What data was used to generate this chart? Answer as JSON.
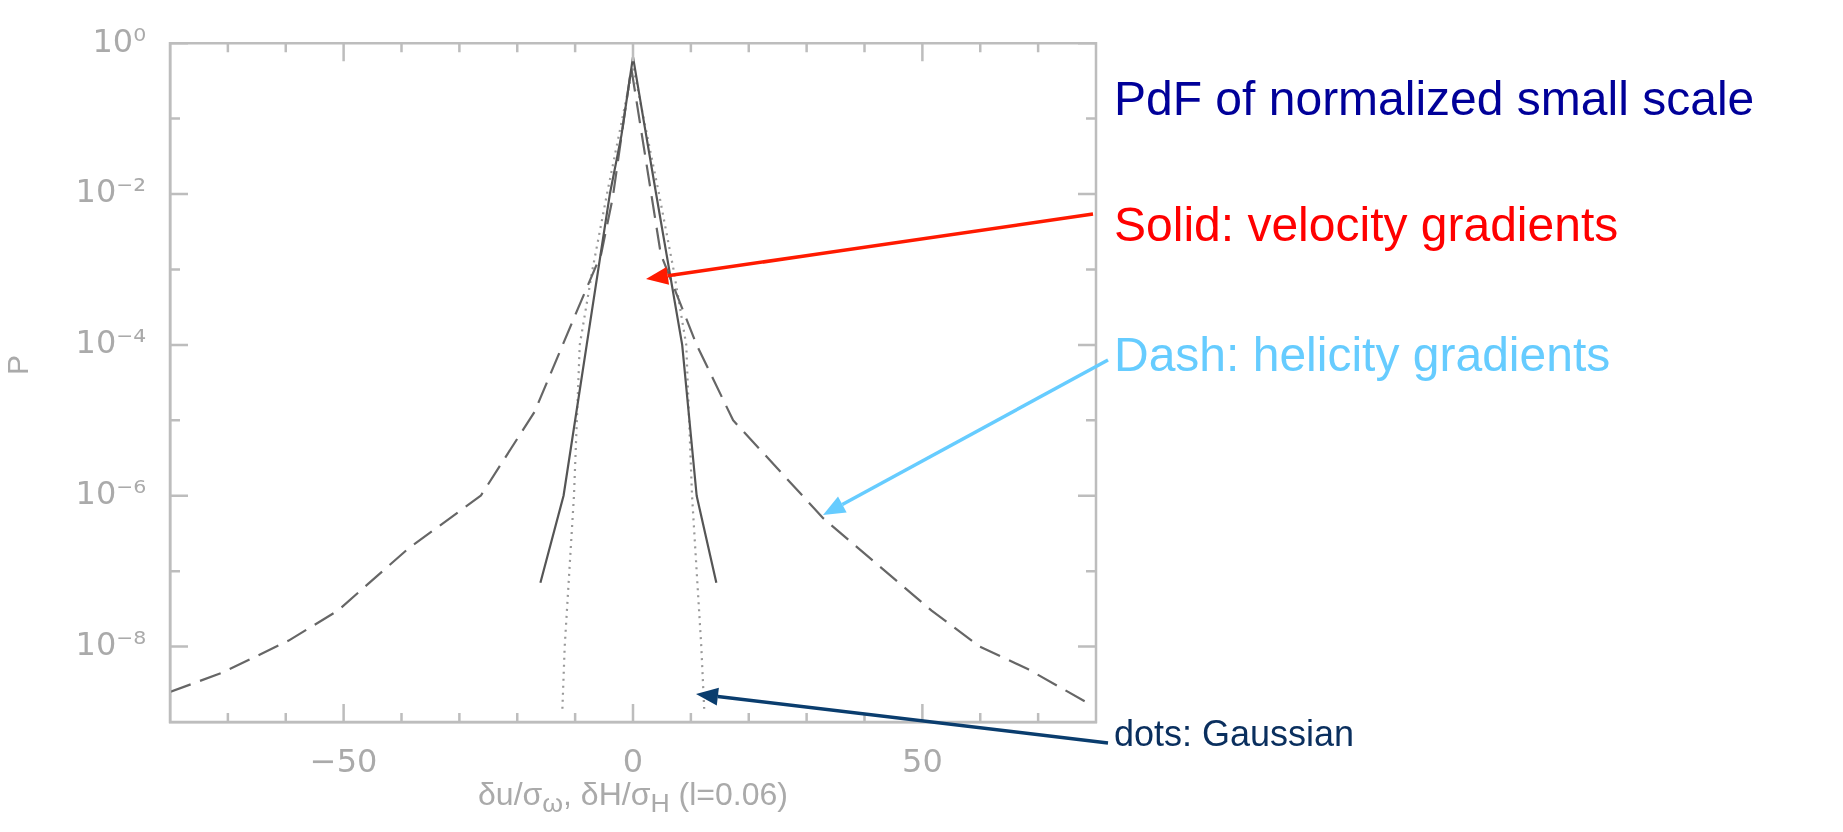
{
  "chart_data": {
    "type": "line",
    "title": "PdF of normalized small scale",
    "xlabel": "δu/σ$_{ω}$, δH/σ$_{H}$ (l=0.06)",
    "ylabel": "P",
    "log": "y",
    "marker": "none",
    "xlim": [
      -80,
      80
    ],
    "ylim": [
      1e-09,
      1
    ],
    "xticks": [
      {
        "value": -70,
        "label": null
      },
      {
        "value": -60,
        "label": null
      },
      {
        "value": -50,
        "label": "−50"
      },
      {
        "value": -40,
        "label": null
      },
      {
        "value": -30,
        "label": null
      },
      {
        "value": -20,
        "label": null
      },
      {
        "value": -10,
        "label": null
      },
      0,
      {
        "value": 10,
        "label": null
      },
      {
        "value": 20,
        "label": null
      },
      {
        "value": 30,
        "label": null
      },
      {
        "value": 40,
        "label": null
      },
      50,
      {
        "value": 60,
        "label": null
      },
      {
        "value": 70,
        "label": null
      }
    ],
    "yticks": [
      {
        "value": 1e-08,
        "label": "10⁻⁸"
      },
      {
        "value": 1e-07,
        "label": null
      },
      {
        "value": 1e-06,
        "label": "10⁻⁶"
      },
      {
        "value": 1e-05,
        "label": null
      },
      {
        "value": 0.0001,
        "label": "10⁻⁴"
      },
      {
        "value": 0.001,
        "label": null
      },
      {
        "value": 0.01,
        "label": "10⁻²"
      },
      {
        "value": 0.1,
        "label": null
      },
      {
        "value": 1,
        "label": "10⁰"
      }
    ],
    "series": [
      {
        "line_style": "solid",
        "color": "#555555",
        "x": [
          -16,
          -12,
          -8,
          -4,
          -2,
          0,
          2,
          4,
          8.5,
          11,
          14.4
        ],
        "values": [
          7e-08,
          1e-06,
          0.0001,
          0.01,
          0.06,
          0.66,
          0.08,
          0.01,
          0.0001,
          1e-06,
          7e-08
        ]
      },
      {
        "line_style": "dashed",
        "color": "#666666",
        "x": [
          -80,
          -71,
          -59.5,
          -51,
          -38.8,
          -26.3,
          -17,
          -9.7,
          -5.5,
          -3.5,
          -0.3,
          4.8,
          11,
          17.3,
          32.9,
          51.6,
          59.9,
          68.3,
          78.5
        ],
        "values": [
          2.5e-09,
          4.5e-09,
          1.2e-08,
          3e-08,
          2e-07,
          1e-06,
          1.3e-05,
          0.00028,
          0.0016,
          0.009,
          0.47,
          0.0016,
          0.0001,
          1e-05,
          5e-07,
          3e-08,
          1e-08,
          5e-09,
          1.8e-09
        ]
      },
      {
        "line_style": "dotted",
        "color": "#999999",
        "x": [
          -12.2,
          -11.8,
          -10.2,
          -9.2,
          -7,
          -4.5,
          0,
          4.5,
          7,
          9.2,
          10.2,
          11.8,
          12.3
        ],
        "values": [
          1.5e-09,
          1e-08,
          1e-06,
          0.0001,
          0.001,
          0.01,
          0.5,
          0.01,
          0.001,
          0.0001,
          1e-06,
          1e-08,
          1.5e-09
        ]
      }
    ],
    "annotations": [
      "Solid: velocity gradients",
      "Dash: helicity gradients",
      "dots: Gaussian"
    ]
  }
}
